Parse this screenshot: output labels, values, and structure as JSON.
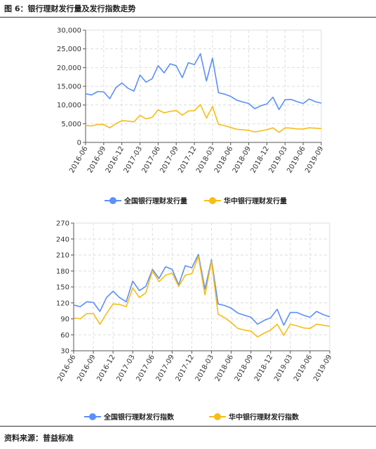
{
  "figure_title": "图 6：银行理财发行量及发行指数走势",
  "source": "资料来源：普益标准",
  "colors": {
    "national": "#5b8ff9",
    "central": "#f6bd16",
    "grid": "#dedede",
    "axis": "#555555"
  },
  "chart_data": [
    {
      "type": "line",
      "title": "",
      "xlabel": "",
      "ylabel": "",
      "ylim": [
        0,
        30000
      ],
      "yticks": [
        "0",
        "5,000",
        "10,000",
        "15,000",
        "20,000",
        "25,000",
        "30,000"
      ],
      "xtick_labels": [
        "2016-06",
        "2016-09",
        "2016-12",
        "2017-03",
        "2017-06",
        "2017-09",
        "2017-12",
        "2018-03",
        "2018-06",
        "2018-09",
        "2018-12",
        "2019-03",
        "2019-06",
        "2019-09"
      ],
      "grid": true,
      "legend_position": "bottom",
      "x": [
        "2016-06",
        "2016-07",
        "2016-08",
        "2016-09",
        "2016-10",
        "2016-11",
        "2016-12",
        "2017-01",
        "2017-02",
        "2017-03",
        "2017-04",
        "2017-05",
        "2017-06",
        "2017-07",
        "2017-08",
        "2017-09",
        "2017-10",
        "2017-11",
        "2017-12",
        "2018-01",
        "2018-02",
        "2018-03",
        "2018-04",
        "2018-05",
        "2018-06",
        "2018-07",
        "2018-08",
        "2018-09",
        "2018-10",
        "2018-11",
        "2018-12",
        "2019-01",
        "2019-02",
        "2019-03",
        "2019-04",
        "2019-05",
        "2019-06",
        "2019-07",
        "2019-08",
        "2019-09"
      ],
      "series": [
        {
          "name": "全国银行理财发行量",
          "color": "#5b8ff9",
          "values": [
            13000,
            12700,
            13600,
            13500,
            11700,
            14600,
            15900,
            14500,
            13700,
            18000,
            16100,
            17000,
            20500,
            18600,
            21000,
            20500,
            17300,
            21300,
            20800,
            23700,
            16400,
            22500,
            13300,
            12900,
            12300,
            11300,
            10800,
            10400,
            9000,
            9800,
            10300,
            12100,
            8800,
            11400,
            11500,
            10900,
            10400,
            11600,
            10900,
            10500
          ]
        },
        {
          "name": "华中银行理财发行量",
          "color": "#f6bd16",
          "values": [
            4500,
            4400,
            4800,
            4800,
            3900,
            5000,
            5800,
            5700,
            5500,
            7200,
            6300,
            6700,
            8700,
            7900,
            8300,
            8500,
            7300,
            8400,
            8500,
            10100,
            6500,
            9600,
            4800,
            4500,
            4000,
            3500,
            3400,
            3200,
            2800,
            3100,
            3400,
            3900,
            2700,
            3900,
            3800,
            3600,
            3600,
            3900,
            3800,
            3700
          ]
        }
      ]
    },
    {
      "type": "line",
      "title": "",
      "xlabel": "",
      "ylabel": "",
      "ylim": [
        30,
        270
      ],
      "yticks": [
        "30",
        "60",
        "90",
        "120",
        "150",
        "180",
        "210",
        "240",
        "270"
      ],
      "xtick_labels": [
        "2016-06",
        "2016-09",
        "2016-12",
        "2017-03",
        "2017-06",
        "2017-09",
        "2017-12",
        "2018-03",
        "2018-06",
        "2018-09",
        "2018-12",
        "2019-03",
        "2019-06",
        "2019-09"
      ],
      "grid": true,
      "legend_position": "bottom",
      "x": [
        "2016-06",
        "2016-07",
        "2016-08",
        "2016-09",
        "2016-10",
        "2016-11",
        "2016-12",
        "2017-01",
        "2017-02",
        "2017-03",
        "2017-04",
        "2017-05",
        "2017-06",
        "2017-07",
        "2017-08",
        "2017-09",
        "2017-10",
        "2017-11",
        "2017-12",
        "2018-01",
        "2018-02",
        "2018-03",
        "2018-04",
        "2018-05",
        "2018-06",
        "2018-07",
        "2018-08",
        "2018-09",
        "2018-10",
        "2018-11",
        "2018-12",
        "2019-01",
        "2019-02",
        "2019-03",
        "2019-04",
        "2019-05",
        "2019-06",
        "2019-07",
        "2019-08",
        "2019-09"
      ],
      "series": [
        {
          "name": "全国银行理财发行指数",
          "color": "#5b8ff9",
          "values": [
            116,
            113,
            122,
            121,
            104,
            130,
            142,
            130,
            122,
            161,
            143,
            151,
            183,
            166,
            188,
            183,
            154,
            190,
            186,
            211,
            146,
            201,
            118,
            115,
            110,
            101,
            97,
            93,
            80,
            87,
            92,
            108,
            78,
            102,
            102,
            97,
            93,
            104,
            98,
            94
          ]
        },
        {
          "name": "华中银行理财发行指数",
          "color": "#f6bd16",
          "values": [
            92,
            90,
            100,
            100,
            80,
            100,
            118,
            117,
            113,
            148,
            130,
            139,
            180,
            160,
            172,
            176,
            151,
            172,
            175,
            207,
            135,
            198,
            99,
            92,
            83,
            72,
            69,
            67,
            56,
            63,
            69,
            80,
            59,
            80,
            77,
            73,
            72,
            80,
            78,
            76
          ]
        }
      ]
    }
  ]
}
